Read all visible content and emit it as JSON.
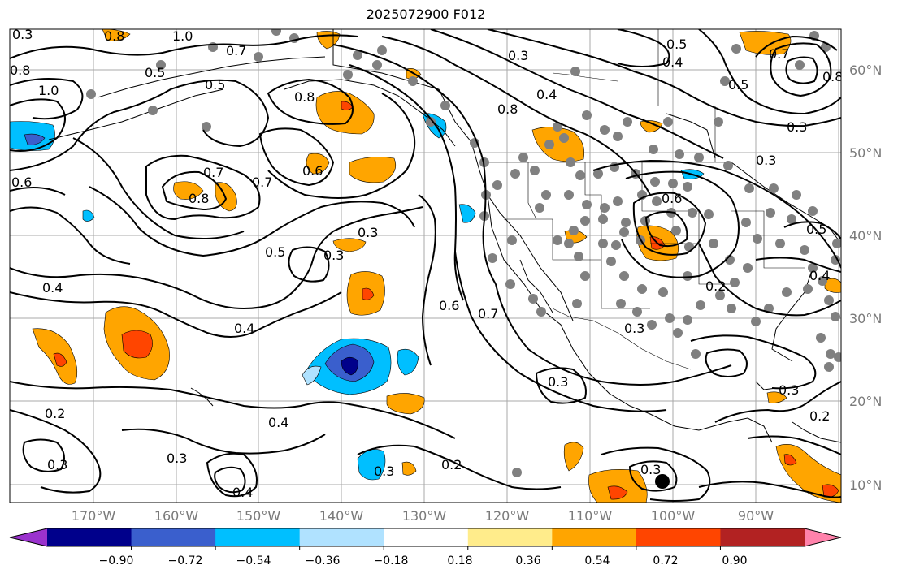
{
  "title": "2025072900 F012",
  "lat_labels": [
    "60°N",
    "50°N",
    "40°N",
    "30°N",
    "20°N",
    "10°N"
  ],
  "lon_labels": [
    "170°W",
    "160°W",
    "150°W",
    "140°W",
    "130°W",
    "120°W",
    "110°W",
    "100°W",
    "90°W"
  ],
  "colorbar": {
    "tick_labels": [
      "−0.90",
      "−0.72",
      "−0.54",
      "−0.36",
      "−0.18",
      "0.18",
      "0.36",
      "0.54",
      "0.72",
      "0.90"
    ],
    "colors": [
      "#9a32cd",
      "#00008b",
      "#3a5fcd",
      "#00bfff",
      "#b0e2ff",
      "#ffffff",
      "#ffec8b",
      "#ffa500",
      "#ff4500",
      "#b22222",
      "#ff82ab"
    ]
  },
  "contour_labels": [
    "0.8",
    "1.0",
    "0.7",
    "0.5",
    "0.6",
    "0.4",
    "0.3",
    "0.2",
    "0.8",
    "0.7",
    "0.6",
    "0.5",
    "0.3",
    "0.4",
    "0.3",
    "0.4",
    "0.2",
    "0.3",
    "0.3",
    "0.4",
    "0.3",
    "0.2",
    "0.6",
    "0.7",
    "0.3",
    "0.3",
    "0.8",
    "0.4",
    "0.3",
    "0.5",
    "0.7",
    "0.8",
    "0.3",
    "0.5",
    "0.3",
    "0.3",
    "0.2",
    "0.6",
    "0.4",
    "0.2",
    "0.3"
  ]
}
